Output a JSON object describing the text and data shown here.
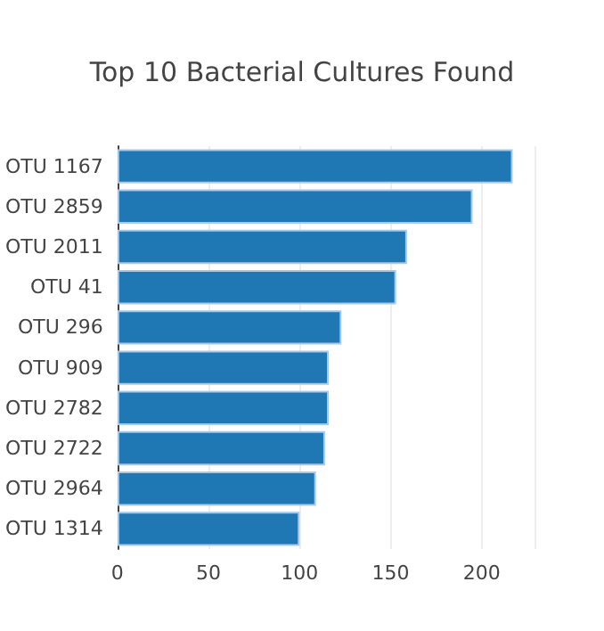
{
  "chart_data": {
    "type": "bar",
    "orientation": "horizontal",
    "title": "Top 10 Bacterial Cultures Found",
    "categories": [
      "OTU 1167",
      "OTU 2859",
      "OTU 2011",
      "OTU 41",
      "OTU 296",
      "OTU 909",
      "OTU 2782",
      "OTU 2722",
      "OTU 2964",
      "OTU 1314"
    ],
    "values": [
      217,
      195,
      159,
      153,
      123,
      116,
      116,
      114,
      109,
      100
    ],
    "color": "#1f77b4",
    "xlim": [
      0,
      229
    ],
    "xticks": [
      0,
      50,
      100,
      150,
      200
    ],
    "grid": "x"
  }
}
